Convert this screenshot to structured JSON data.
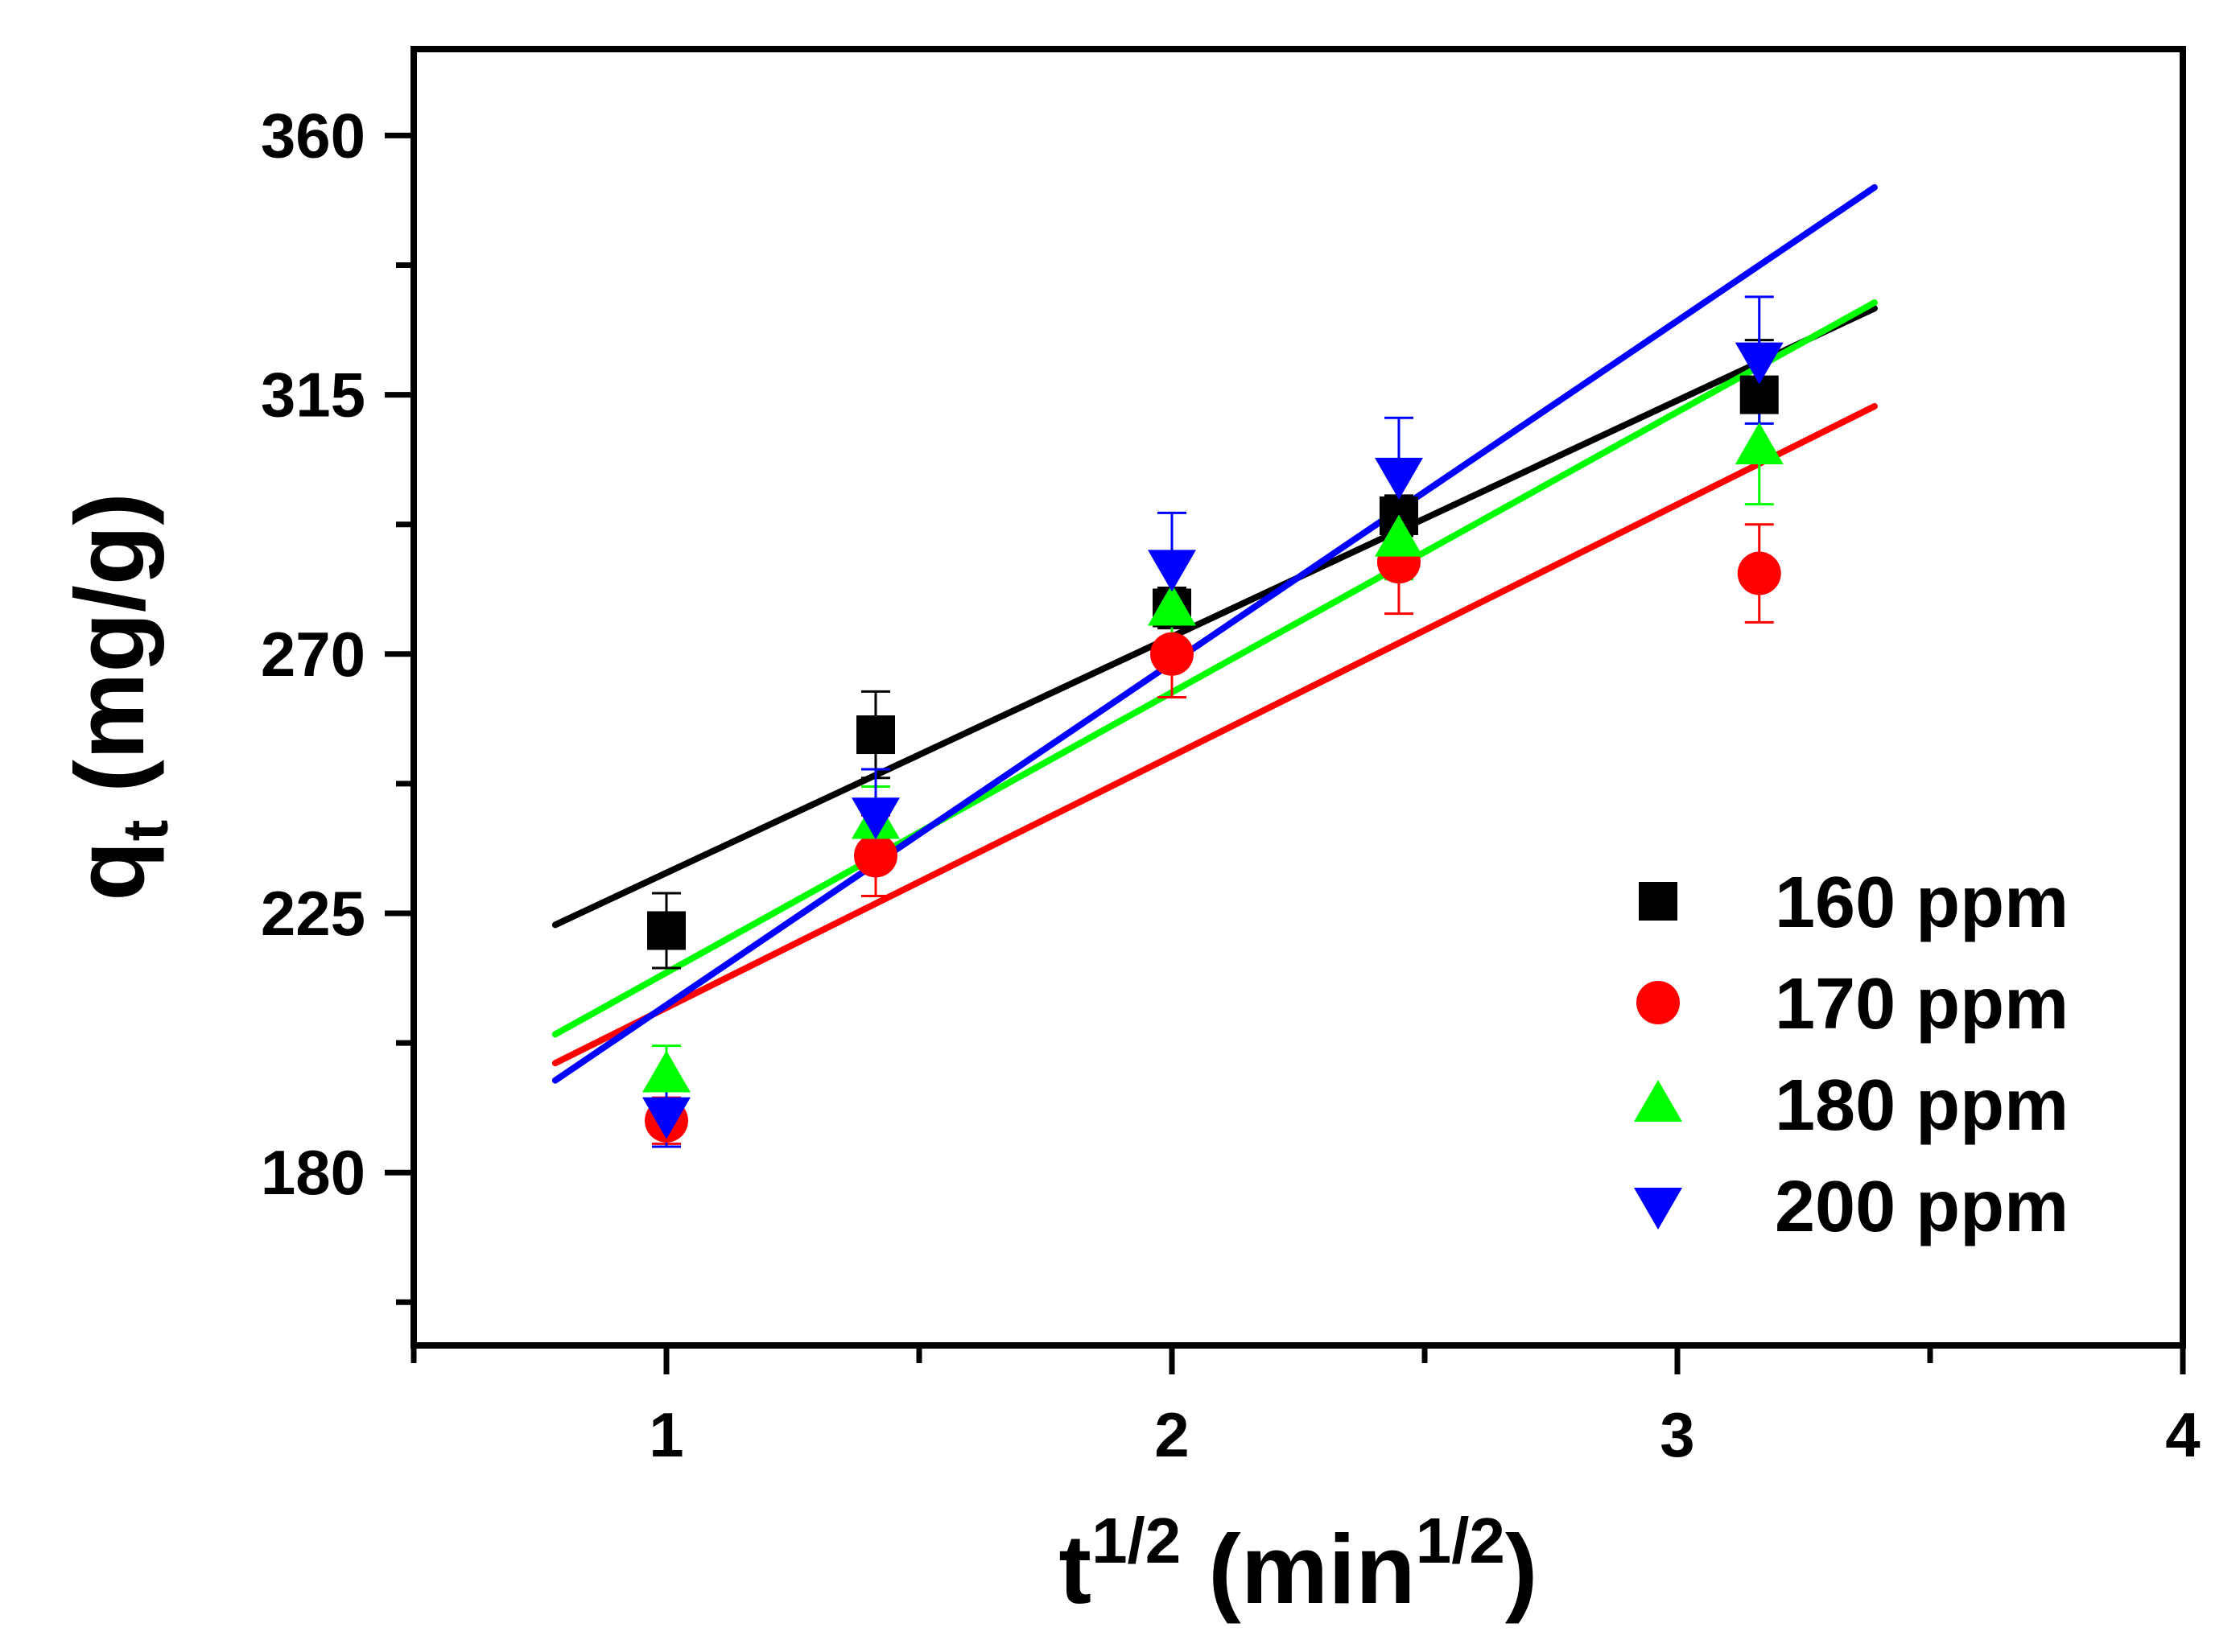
{
  "chart_data": {
    "type": "scatter",
    "title": "",
    "xlabel": {
      "base": "t",
      "sup": "1/2",
      "rest": " (min",
      "rest_sup": "1/2",
      "close": ")"
    },
    "ylabel": {
      "base": "q",
      "sub": "t",
      "rest": " (mg/g)"
    },
    "xlim": [
      0.5,
      4.0
    ],
    "ylim": [
      150,
      375
    ],
    "x_ticks": [
      1,
      2,
      3,
      4
    ],
    "x_tick_labels": [
      "1",
      "2",
      "3",
      "4"
    ],
    "x_minor_ticks": [
      0.5,
      1.5,
      2.5,
      3.5
    ],
    "y_ticks": [
      180,
      225,
      270,
      315,
      360
    ],
    "y_tick_labels": [
      "180",
      "225",
      "270",
      "315",
      "360"
    ],
    "y_minor_ticks": [
      157.5,
      202.5,
      247.5,
      292.5,
      337.5
    ],
    "grid": false,
    "legend_position": "bottom-right",
    "series": [
      {
        "name": "160 ppm",
        "marker": "square",
        "color": "#000000",
        "x": [
          1.0,
          1.414,
          2.0,
          2.449,
          3.162
        ],
        "y": [
          222,
          256,
          278,
          294,
          315
        ],
        "err": [
          6.5,
          7.5,
          3.5,
          3.5,
          9.5
        ],
        "fit": {
          "x0": 0.78,
          "y0": 223,
          "x1": 3.39,
          "y1": 330
        }
      },
      {
        "name": "170 ppm",
        "marker": "circle",
        "color": "#ff0000",
        "x": [
          1.0,
          1.414,
          2.0,
          2.449,
          3.162
        ],
        "y": [
          189,
          235,
          270,
          286,
          284
        ],
        "err": [
          4,
          7,
          7.5,
          9,
          8.5
        ],
        "fit": {
          "x0": 0.78,
          "y0": 199,
          "x1": 3.39,
          "y1": 313
        }
      },
      {
        "name": "180 ppm",
        "marker": "triangle-up",
        "color": "#00ff00",
        "x": [
          1.0,
          1.414,
          2.0,
          2.449,
          3.162
        ],
        "y": [
          197,
          241,
          278,
          290,
          306
        ],
        "err": [
          5,
          6,
          8,
          7,
          10
        ],
        "fit": {
          "x0": 0.78,
          "y0": 204,
          "x1": 3.39,
          "y1": 331
        }
      },
      {
        "name": "200 ppm",
        "marker": "triangle-down",
        "color": "#0000ff",
        "x": [
          1.0,
          1.414,
          2.0,
          2.449,
          3.162
        ],
        "y": [
          190,
          242,
          285,
          301,
          321
        ],
        "err": [
          5.5,
          8,
          9.5,
          10,
          11
        ],
        "fit": {
          "x0": 0.78,
          "y0": 196,
          "x1": 3.39,
          "y1": 351
        }
      }
    ]
  }
}
